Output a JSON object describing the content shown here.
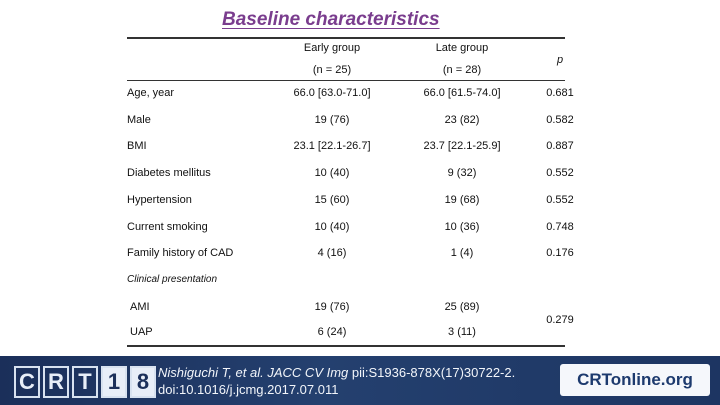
{
  "title": "Baseline characteristics",
  "headers": {
    "early": "Early group",
    "early_n": "(n = 25)",
    "late": "Late group",
    "late_n": "(n = 28)",
    "p": "p"
  },
  "rows": [
    {
      "label": "Age, year",
      "early": "66.0 [63.0-71.0]",
      "late": "66.0 [61.5-74.0]",
      "p": "0.681"
    },
    {
      "label": "Male",
      "early": "19 (76)",
      "late": "23 (82)",
      "p": "0.582"
    },
    {
      "label": "BMI",
      "early": "23.1 [22.1-26.7]",
      "late": "23.7 [22.1-25.9]",
      "p": "0.887"
    },
    {
      "label": "Diabetes mellitus",
      "early": "10 (40)",
      "late": "9 (32)",
      "p": "0.552"
    },
    {
      "label": "Hypertension",
      "early": "15 (60)",
      "late": "19 (68)",
      "p": "0.552"
    },
    {
      "label": "Current smoking",
      "early": "10 (40)",
      "late": "10 (36)",
      "p": "0.748"
    },
    {
      "label": "Family history of CAD",
      "early": "4 (16)",
      "late": "1 (4)",
      "p": "0.176"
    }
  ],
  "clinical": {
    "label": "Clinical presentation",
    "ami": {
      "label": "AMI",
      "early": "19 (76)",
      "late": "25 (89)"
    },
    "uap": {
      "label": "UAP",
      "early": "6 (24)",
      "late": "3 (11)"
    },
    "p": "0.279"
  },
  "footer": {
    "logo_letters": [
      "C",
      "R",
      "T",
      "1",
      "8"
    ],
    "citation_authors": "Nishiguchi T, et al.",
    "citation_journal": "JACC CV Img",
    "citation_rest": " pii:S1936-878X(17)30722-2.",
    "citation_doi": "doi:10.1016/j.jcmg.2017.07.011",
    "site": "CRTonline.org"
  }
}
